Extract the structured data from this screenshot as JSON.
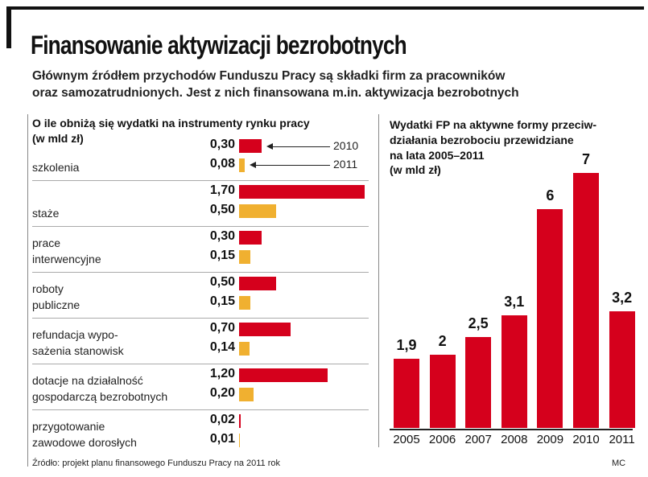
{
  "title": "Finansowanie aktywizacji bezrobotnych",
  "subtitle": "Głównym źródłem przychodów Funduszu Pracy są składki firm za pracowników\noraz samozatrudnionych. Jest z nich finansowana m.in. aktywizacja bezrobotnych",
  "chart_data": [
    {
      "type": "hbar",
      "title": "O ile obniżą się wydatki na instrumenty rynku pracy",
      "unit": "(w mld zł)",
      "categories": [
        "szkolenia",
        "staże",
        "prace\ninterwencyjne",
        "roboty\npubliczne",
        "refundacja wypo-\nsażenia stanowisk",
        "dotacje na działalność\ngospodarczą bezrobotnych",
        "przygotowanie\nzawodowe dorosłych"
      ],
      "series": [
        {
          "name": "2010",
          "color": "#d5001c",
          "values": [
            0.3,
            1.7,
            0.3,
            0.5,
            0.7,
            1.2,
            0.02
          ],
          "value_labels": [
            "0,30",
            "1,70",
            "0,30",
            "0,50",
            "0,70",
            "1,20",
            "0,02"
          ]
        },
        {
          "name": "2011",
          "color": "#f0b030",
          "values": [
            0.08,
            0.5,
            0.15,
            0.15,
            0.14,
            0.2,
            0.01
          ],
          "value_labels": [
            "0,08",
            "0,50",
            "0,15",
            "0,15",
            "0,14",
            "0,20",
            "0,01"
          ]
        }
      ]
    },
    {
      "type": "bar",
      "title": "Wydatki FP na aktywne formy przeciw-\ndziałania bezrobociu przewidziane\nna lata 2005–2011",
      "unit": "(w mld zł)",
      "categories": [
        "2005",
        "2006",
        "2007",
        "2008",
        "2009",
        "2010",
        "2011"
      ],
      "color": "#d5001c",
      "values": [
        1.9,
        2,
        2.5,
        3.1,
        6,
        7,
        3.2
      ],
      "value_labels": [
        "1,9",
        "2",
        "2,5",
        "3,1",
        "6",
        "7",
        "3,2"
      ]
    }
  ],
  "source": "Źródło: projekt planu finansowego Funduszu Pracy na 2011 rok",
  "credit": "MC"
}
